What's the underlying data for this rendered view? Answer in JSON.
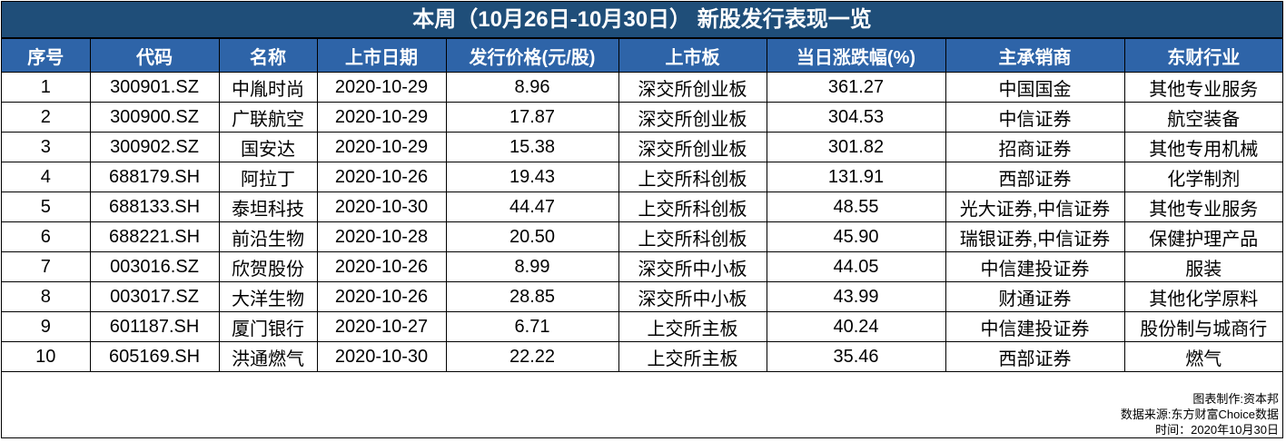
{
  "title": "本周（10月26日-10月30日） 新股发行表现一览",
  "table": {
    "header": [
      "序号",
      "代码",
      "名称",
      "上市日期",
      "发行价格(元/股)",
      "上市板",
      "当日涨跌幅(%)",
      "主承销商",
      "东财行业"
    ],
    "rows": [
      [
        "1",
        "300901.SZ",
        "中胤时尚",
        "2020-10-29",
        "8.96",
        "深交所创业板",
        "361.27",
        "中国国金",
        "其他专业服务"
      ],
      [
        "2",
        "300900.SZ",
        "广联航空",
        "2020-10-29",
        "17.87",
        "深交所创业板",
        "304.53",
        "中信证券",
        "航空装备"
      ],
      [
        "3",
        "300902.SZ",
        "国安达",
        "2020-10-29",
        "15.38",
        "深交所创业板",
        "301.82",
        "招商证券",
        "其他专用机械"
      ],
      [
        "4",
        "688179.SH",
        "阿拉丁",
        "2020-10-26",
        "19.43",
        "上交所科创板",
        "131.91",
        "西部证券",
        "化学制剂"
      ],
      [
        "5",
        "688133.SH",
        "泰坦科技",
        "2020-10-30",
        "44.47",
        "上交所科创板",
        "48.55",
        "光大证券,中信证券",
        "其他专业服务"
      ],
      [
        "6",
        "688221.SH",
        "前沿生物",
        "2020-10-28",
        "20.50",
        "上交所科创板",
        "45.90",
        "瑞银证券,中信证券",
        "保健护理产品"
      ],
      [
        "7",
        "003016.SZ",
        "欣贺股份",
        "2020-10-26",
        "8.99",
        "深交所中小板",
        "44.05",
        "中信建投证券",
        "服装"
      ],
      [
        "8",
        "003017.SZ",
        "大洋生物",
        "2020-10-26",
        "28.85",
        "深交所中小板",
        "43.99",
        "财通证券",
        "其他化学原料"
      ],
      [
        "9",
        "601187.SH",
        "厦门银行",
        "2020-10-27",
        "6.71",
        "上交所主板",
        "40.24",
        "中信建投证券",
        "股份制与城商行"
      ],
      [
        "10",
        "605169.SH",
        "洪通燃气",
        "2020-10-30",
        "22.22",
        "上交所主板",
        "35.46",
        "西部证券",
        "燃气"
      ]
    ]
  },
  "footer": [
    "图表制作:资本邦",
    "数据来源:东方财富Choice数据",
    "时间：2020年10月30日"
  ]
}
